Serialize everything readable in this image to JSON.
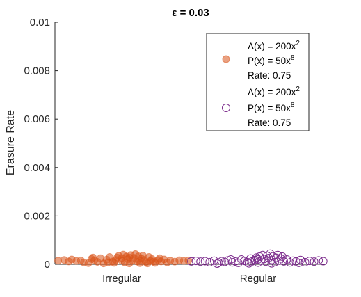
{
  "chart_data": {
    "type": "scatter",
    "title": "ε = 0.03",
    "xlabel": "",
    "ylabel": "Erasure Rate",
    "categories": [
      "Irregular",
      "Regular"
    ],
    "ylim": [
      0,
      0.01
    ],
    "yticks": [
      0,
      0.002,
      0.004,
      0.006,
      0.008,
      0.01
    ],
    "ytick_labels": [
      "0",
      "0.002",
      "0.004",
      "0.006",
      "0.008",
      "0.01"
    ],
    "grid": false,
    "legend_position": "top-right",
    "series": [
      {
        "category": "Irregular",
        "marker": "filled-circle",
        "color": "#D95319",
        "legend": {
          "lambda_base": "Λ(x) = 200x",
          "lambda_exp": "2",
          "p_base": "P(x) = 50x",
          "p_exp": "8",
          "rate": "Rate: 0.75"
        },
        "points": [
          [
            -0.42,
            0.00015
          ],
          [
            -0.38,
            0.00018
          ],
          [
            -0.35,
            0.00012
          ],
          [
            -0.33,
            0.0002
          ],
          [
            -0.3,
            0.00014
          ],
          [
            -0.25,
            8e-05
          ],
          [
            -0.22,
            5e-05
          ],
          [
            -0.2,
            0.00022
          ],
          [
            -0.18,
            0.00017
          ],
          [
            -0.16,
            0.0001
          ],
          [
            -0.14,
            0.00025
          ],
          [
            -0.12,
            4e-05
          ],
          [
            -0.1,
            0.00019
          ],
          [
            -0.08,
            0.0003
          ],
          [
            -0.06,
            0.00012
          ],
          [
            -0.05,
            6e-05
          ],
          [
            -0.03,
            0.00028
          ],
          [
            -0.02,
            0.00035
          ],
          [
            0.0,
            0.00015
          ],
          [
            0.01,
            0.0004
          ],
          [
            0.02,
            8e-05
          ],
          [
            0.03,
            0.00032
          ],
          [
            0.04,
            0.00022
          ],
          [
            0.05,
            4e-05
          ],
          [
            0.06,
            0.00038
          ],
          [
            0.07,
            0.00016
          ],
          [
            0.08,
            0.00027
          ],
          [
            0.09,
            0.00042
          ],
          [
            0.1,
            0.00012
          ],
          [
            0.11,
            0.00033
          ],
          [
            0.12,
            5e-05
          ],
          [
            0.13,
            0.00024
          ],
          [
            0.14,
            0.00036
          ],
          [
            0.15,
            0.00018
          ],
          [
            0.16,
            9e-05
          ],
          [
            0.18,
            0.0003
          ],
          [
            0.19,
            0.00014
          ],
          [
            0.2,
            0.00022
          ],
          [
            0.22,
            6e-05
          ],
          [
            0.24,
            0.00018
          ],
          [
            0.26,
            0.00012
          ],
          [
            0.28,
            0.0002
          ],
          [
            0.3,
            8e-05
          ],
          [
            0.32,
            0.00015
          ],
          [
            0.35,
            0.00011
          ],
          [
            0.38,
            0.00017
          ],
          [
            0.41,
            0.00014
          ],
          [
            0.44,
            0.00016
          ],
          [
            -0.27,
            0.00016
          ],
          [
            -0.09,
            8e-05
          ],
          [
            0.0,
            0.00026
          ],
          [
            0.17,
            4e-05
          ],
          [
            0.25,
            0.00025
          ],
          [
            -0.19,
            0.00028
          ],
          [
            0.05,
            0.00028
          ],
          [
            0.12,
            0.00015
          ],
          [
            -0.04,
            0.00018
          ],
          [
            0.21,
            0.00012
          ]
        ]
      },
      {
        "category": "Regular",
        "marker": "open-circle",
        "color": "#7E2F8E",
        "legend": {
          "lambda_base": "Λ(x) = 200x",
          "lambda_exp": "2",
          "p_base": "P(x) = 50x",
          "p_exp": "8",
          "rate": "Rate: 0.75"
        },
        "points": [
          [
            -0.44,
            0.00012
          ],
          [
            -0.41,
            0.00014
          ],
          [
            -0.38,
            0.00011
          ],
          [
            -0.35,
            0.00013
          ],
          [
            -0.32,
            9e-05
          ],
          [
            -0.29,
            0.00015
          ],
          [
            -0.26,
            7e-05
          ],
          [
            -0.24,
            0.00013
          ],
          [
            -0.22,
            0.0001
          ],
          [
            -0.2,
            0.00016
          ],
          [
            -0.17,
            8e-05
          ],
          [
            -0.15,
            0.00012
          ],
          [
            -0.13,
            6e-05
          ],
          [
            -0.11,
            0.0002
          ],
          [
            -0.09,
            0.00014
          ],
          [
            -0.07,
            9e-05
          ],
          [
            -0.05,
            0.00024
          ],
          [
            -0.04,
            0.00012
          ],
          [
            -0.02,
            0.00018
          ],
          [
            -0.01,
            0.00028
          ],
          [
            0.0,
            7e-05
          ],
          [
            0.01,
            0.00032
          ],
          [
            0.02,
            0.00016
          ],
          [
            0.03,
            0.00038
          ],
          [
            0.04,
            0.00022
          ],
          [
            0.05,
            0.00011
          ],
          [
            0.06,
            0.00035
          ],
          [
            0.07,
            0.00026
          ],
          [
            0.08,
            0.00044
          ],
          [
            0.09,
            0.00018
          ],
          [
            0.1,
            0.00033
          ],
          [
            0.11,
            9e-05
          ],
          [
            0.12,
            0.00027
          ],
          [
            0.13,
            0.00038
          ],
          [
            0.14,
            0.00015
          ],
          [
            0.15,
            0.00024
          ],
          [
            0.17,
            0.00012
          ],
          [
            0.19,
            0.0002
          ],
          [
            0.21,
            8e-05
          ],
          [
            0.23,
            0.00015
          ],
          [
            0.25,
            0.00012
          ],
          [
            0.28,
            0.00018
          ],
          [
            0.31,
            9e-05
          ],
          [
            0.34,
            0.00014
          ],
          [
            0.37,
            0.00011
          ],
          [
            0.4,
            0.00016
          ],
          [
            0.43,
            0.00013
          ],
          [
            -0.18,
            0.0002
          ],
          [
            0.0,
            0.0002
          ],
          [
            0.16,
            0.00032
          ],
          [
            -0.06,
            4e-05
          ],
          [
            0.27,
            6e-05
          ],
          [
            0.09,
            4e-05
          ],
          [
            -0.27,
            3e-05
          ]
        ]
      }
    ]
  }
}
